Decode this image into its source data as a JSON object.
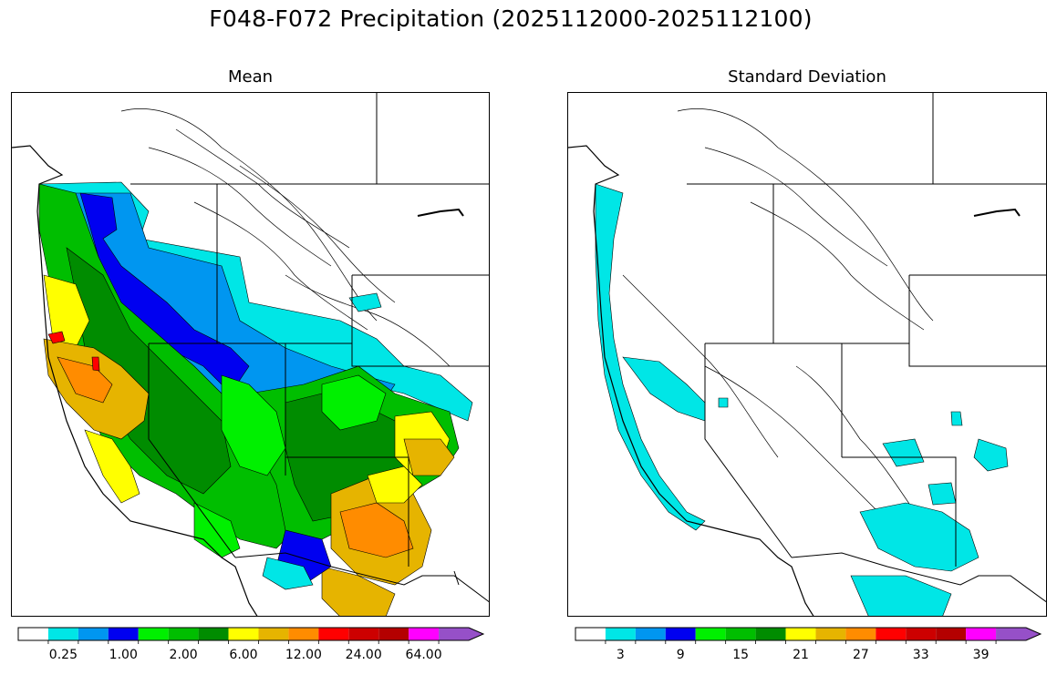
{
  "figure": {
    "title": "F048-F072 Precipitation (2025112000-2025112100)"
  },
  "panels": [
    {
      "title": "Mean",
      "legend": {
        "colors": [
          "#ffffff",
          "#00e6e6",
          "#0096f0",
          "#0000f0",
          "#00f000",
          "#00be00",
          "#008c00",
          "#ffff00",
          "#e6b400",
          "#ff8c00",
          "#ff0000",
          "#cd0000",
          "#b40000",
          "#ff00ff",
          "#9650c8"
        ],
        "tick_labels": [
          "0.25",
          "1.00",
          "2.00",
          "6.00",
          "12.00",
          "24.00",
          "64.00"
        ],
        "extends_max": true
      }
    },
    {
      "title": "Standard Deviation",
      "legend": {
        "colors": [
          "#ffffff",
          "#00e6e6",
          "#0096f0",
          "#0000f0",
          "#00f000",
          "#00be00",
          "#008c00",
          "#ffff00",
          "#e6b400",
          "#ff8c00",
          "#ff0000",
          "#cd0000",
          "#b40000",
          "#ff00ff",
          "#9650c8"
        ],
        "tick_labels": [
          "3",
          "9",
          "15",
          "21",
          "27",
          "33",
          "39"
        ],
        "extends_max": true
      }
    }
  ]
}
